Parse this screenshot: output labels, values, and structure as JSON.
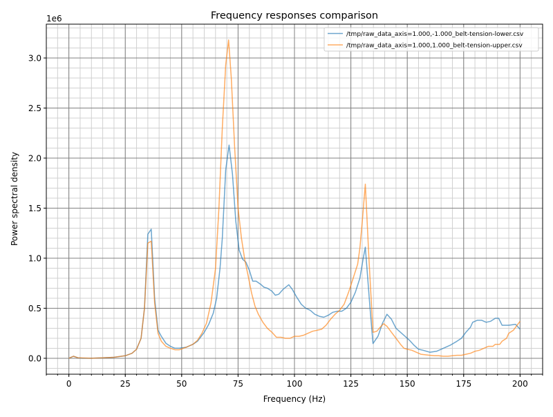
{
  "chart_data": {
    "type": "line",
    "title": "Frequency responses comparison",
    "xlabel": "Frequency (Hz)",
    "ylabel": "Power spectral density",
    "y_offset_label": "1e6",
    "xlim": [
      -10,
      210
    ],
    "ylim": [
      -0.159,
      3.338
    ],
    "x_ticks": [
      0,
      25,
      50,
      75,
      100,
      125,
      150,
      175,
      200
    ],
    "x_tick_labels": [
      "0",
      "25",
      "50",
      "75",
      "100",
      "125",
      "150",
      "175",
      "200"
    ],
    "y_ticks": [
      0,
      0.5,
      1.0,
      1.5,
      2.0,
      2.5,
      3.0
    ],
    "y_tick_labels": [
      "0.0",
      "0.5",
      "1.0",
      "1.5",
      "2.0",
      "2.5",
      "3.0"
    ],
    "x_minor_step": 5,
    "y_minor_step": 0.1,
    "grid": true,
    "legend_position": "top-right",
    "y_units_scale": 1000000,
    "series": [
      {
        "name": "/tmp/raw_data_axis=1.000,-1.000_belt-tension-lower.csv",
        "color": "#1f77b4",
        "x": [
          0,
          2,
          4,
          6,
          10,
          15,
          20,
          25,
          28,
          30,
          32,
          33.5,
          35,
          36.5,
          38,
          39.5,
          41,
          43,
          45,
          47,
          49,
          52,
          55,
          57,
          60,
          62,
          64,
          65.5,
          67,
          68,
          69.5,
          71,
          72.5,
          74,
          75.5,
          77,
          78.5,
          80,
          81.5,
          83,
          85,
          86.5,
          88,
          90,
          91.5,
          93,
          95,
          97.5,
          99,
          101,
          103,
          105,
          107,
          109,
          111,
          113,
          115,
          117,
          119,
          121,
          123,
          125,
          127,
          129,
          130.5,
          131.4,
          133.5,
          134.8,
          137,
          139,
          141,
          143,
          145,
          147,
          149,
          151,
          153,
          155,
          157,
          160,
          163,
          166,
          169,
          172,
          174,
          176,
          178,
          179,
          181,
          183,
          185,
          187,
          189,
          190.5,
          192,
          195,
          198,
          200
        ],
        "y": [
          0,
          0.02,
          0.005,
          0,
          0,
          0.005,
          0.01,
          0.025,
          0.05,
          0.09,
          0.2,
          0.5,
          1.24,
          1.29,
          0.6,
          0.28,
          0.22,
          0.15,
          0.12,
          0.1,
          0.1,
          0.11,
          0.14,
          0.17,
          0.26,
          0.34,
          0.45,
          0.6,
          0.9,
          1.2,
          1.88,
          2.13,
          1.84,
          1.37,
          1.08,
          0.99,
          0.96,
          0.88,
          0.77,
          0.77,
          0.74,
          0.71,
          0.7,
          0.67,
          0.63,
          0.64,
          0.69,
          0.735,
          0.69,
          0.61,
          0.54,
          0.5,
          0.48,
          0.44,
          0.42,
          0.41,
          0.43,
          0.46,
          0.47,
          0.47,
          0.5,
          0.56,
          0.66,
          0.8,
          1.0,
          1.11,
          0.5,
          0.147,
          0.22,
          0.35,
          0.44,
          0.39,
          0.3,
          0.26,
          0.22,
          0.18,
          0.13,
          0.09,
          0.08,
          0.06,
          0.07,
          0.1,
          0.13,
          0.17,
          0.2,
          0.26,
          0.31,
          0.36,
          0.38,
          0.38,
          0.36,
          0.37,
          0.4,
          0.4,
          0.33,
          0.33,
          0.34,
          0.29
        ]
      },
      {
        "name": "/tmp/raw_data_axis=1.000,1.000_belt-tension-upper.csv",
        "color": "#ff7f0e",
        "x": [
          0,
          2,
          4,
          10,
          15,
          20,
          25,
          28,
          30,
          32,
          33.5,
          35,
          36.5,
          38,
          39.5,
          41,
          43,
          45,
          47,
          49,
          52,
          55,
          57,
          59,
          61,
          63,
          65,
          66.5,
          68,
          69.5,
          70.8,
          72,
          73.5,
          75,
          76.5,
          78,
          79.5,
          81,
          82.5,
          84,
          86,
          88,
          90,
          92,
          94,
          96,
          98,
          100,
          102,
          104,
          106,
          108,
          110,
          112,
          114,
          116,
          118,
          120,
          122,
          124,
          126,
          128,
          129,
          130,
          131.4,
          133,
          134.8,
          136.5,
          138,
          139.5,
          141,
          143,
          145,
          147,
          148.5,
          150,
          152,
          154,
          156,
          158,
          160,
          162,
          164,
          166,
          168,
          170,
          172,
          174,
          176,
          178,
          180,
          182,
          184,
          186,
          188,
          189,
          191,
          192,
          194,
          195,
          197,
          199,
          200
        ],
        "y": [
          0,
          0.02,
          0.005,
          0,
          0.005,
          0.01,
          0.025,
          0.05,
          0.09,
          0.2,
          0.5,
          1.15,
          1.17,
          0.55,
          0.25,
          0.17,
          0.12,
          0.1,
          0.085,
          0.085,
          0.11,
          0.14,
          0.18,
          0.25,
          0.35,
          0.55,
          0.9,
          1.5,
          2.3,
          2.93,
          3.18,
          2.8,
          2.1,
          1.5,
          1.2,
          0.98,
          0.82,
          0.65,
          0.52,
          0.44,
          0.36,
          0.3,
          0.26,
          0.21,
          0.21,
          0.2,
          0.2,
          0.22,
          0.22,
          0.23,
          0.25,
          0.27,
          0.28,
          0.29,
          0.33,
          0.39,
          0.44,
          0.48,
          0.54,
          0.66,
          0.8,
          0.94,
          1.1,
          1.35,
          1.74,
          1.0,
          0.26,
          0.27,
          0.31,
          0.345,
          0.32,
          0.26,
          0.2,
          0.14,
          0.1,
          0.09,
          0.08,
          0.06,
          0.04,
          0.035,
          0.03,
          0.025,
          0.025,
          0.02,
          0.02,
          0.025,
          0.03,
          0.03,
          0.04,
          0.05,
          0.07,
          0.08,
          0.1,
          0.12,
          0.12,
          0.14,
          0.14,
          0.17,
          0.2,
          0.25,
          0.28,
          0.34,
          0.37
        ]
      }
    ]
  }
}
